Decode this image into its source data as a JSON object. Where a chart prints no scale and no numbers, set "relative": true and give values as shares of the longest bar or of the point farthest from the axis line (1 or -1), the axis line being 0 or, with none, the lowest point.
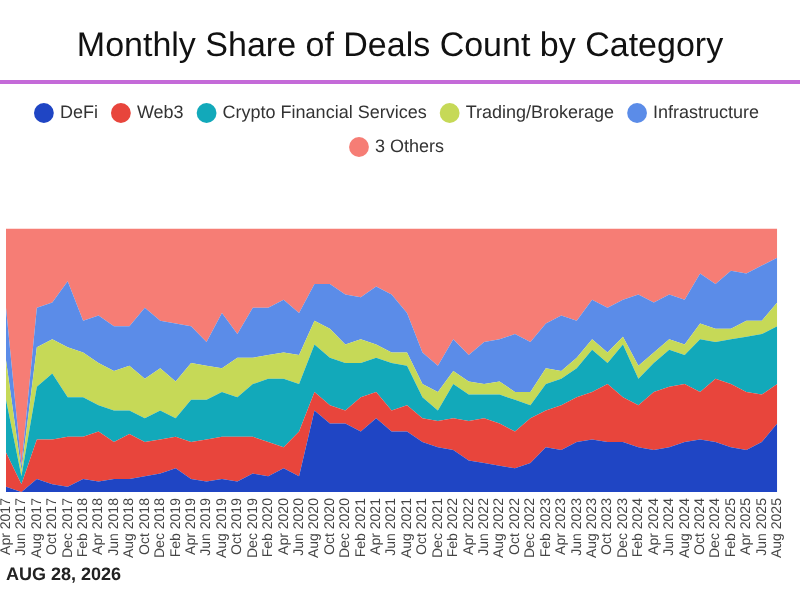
{
  "chart_data": {
    "type": "area",
    "title": "Monthly Share of Deals Count by Category",
    "stacked": true,
    "relative": true,
    "legend": "top",
    "categories": [
      "Apr 2017",
      "Jun 2017",
      "Aug 2017",
      "Oct 2017",
      "Dec 2017",
      "Feb 2018",
      "Apr 2018",
      "Jun 2018",
      "Aug 2018",
      "Oct 2018",
      "Dec 2018",
      "Feb 2019",
      "Apr 2019",
      "Jun 2019",
      "Aug 2019",
      "Oct 2019",
      "Dec 2019",
      "Feb 2020",
      "Apr 2020",
      "Jun 2020",
      "Aug 2020",
      "Oct 2020",
      "Dec 2020",
      "Feb 2021",
      "Apr 2021",
      "Jun 2021",
      "Aug 2021",
      "Oct 2021",
      "Dec 2021",
      "Feb 2022",
      "Apr 2022",
      "Jun 2022",
      "Aug 2022",
      "Oct 2022",
      "Dec 2022",
      "Feb 2023",
      "Apr 2023",
      "Jun 2023",
      "Aug 2023",
      "Oct 2023",
      "Dec 2023",
      "Feb 2024",
      "Apr 2024",
      "Jun 2024",
      "Aug 2024",
      "Oct 2024",
      "Dec 2024",
      "Feb 2025",
      "Apr 2025",
      "Jun 2025",
      "Aug 2025"
    ],
    "series": [
      {
        "name": "DeFi",
        "color": "#1f45c4",
        "values": [
          0.02,
          0,
          0.05,
          0.03,
          0.02,
          0.05,
          0.04,
          0.05,
          0.05,
          0.06,
          0.07,
          0.09,
          0.05,
          0.04,
          0.05,
          0.04,
          0.07,
          0.06,
          0.09,
          0.06,
          0.31,
          0.26,
          0.26,
          0.23,
          0.28,
          0.23,
          0.23,
          0.19,
          0.17,
          0.16,
          0.12,
          0.11,
          0.1,
          0.09,
          0.11,
          0.17,
          0.16,
          0.19,
          0.2,
          0.19,
          0.19,
          0.17,
          0.16,
          0.17,
          0.19,
          0.2,
          0.19,
          0.17,
          0.16,
          0.19,
          0.26
        ]
      },
      {
        "name": "Web3",
        "color": "#e8453c",
        "values": [
          0.13,
          0.03,
          0.15,
          0.17,
          0.19,
          0.16,
          0.19,
          0.14,
          0.17,
          0.13,
          0.13,
          0.12,
          0.14,
          0.16,
          0.16,
          0.17,
          0.14,
          0.13,
          0.08,
          0.17,
          0.07,
          0.07,
          0.05,
          0.13,
          0.1,
          0.08,
          0.1,
          0.09,
          0.1,
          0.12,
          0.15,
          0.17,
          0.16,
          0.14,
          0.17,
          0.14,
          0.17,
          0.17,
          0.18,
          0.22,
          0.17,
          0.16,
          0.22,
          0.23,
          0.22,
          0.18,
          0.24,
          0.24,
          0.22,
          0.18,
          0.15
        ]
      },
      {
        "name": "Crypto Financial Services",
        "color": "#12a9ba",
        "values": [
          0.2,
          0.03,
          0.2,
          0.25,
          0.15,
          0.15,
          0.1,
          0.12,
          0.09,
          0.09,
          0.11,
          0.07,
          0.16,
          0.15,
          0.17,
          0.15,
          0.2,
          0.24,
          0.26,
          0.18,
          0.18,
          0.18,
          0.18,
          0.13,
          0.13,
          0.18,
          0.15,
          0.08,
          0.04,
          0.13,
          0.1,
          0.09,
          0.11,
          0.12,
          0.05,
          0.1,
          0.1,
          0.11,
          0.16,
          0.08,
          0.2,
          0.1,
          0.11,
          0.14,
          0.11,
          0.2,
          0.14,
          0.17,
          0.21,
          0.23,
          0.22
        ]
      },
      {
        "name": "Trading/Brokerage",
        "color": "#c6d957",
        "values": [
          0.15,
          0.02,
          0.15,
          0.13,
          0.19,
          0.17,
          0.16,
          0.15,
          0.17,
          0.15,
          0.16,
          0.14,
          0.14,
          0.13,
          0.09,
          0.15,
          0.1,
          0.09,
          0.1,
          0.11,
          0.09,
          0.11,
          0.07,
          0.09,
          0.05,
          0.04,
          0.05,
          0.05,
          0.07,
          0.05,
          0.05,
          0.04,
          0.05,
          0.03,
          0.05,
          0.06,
          0.03,
          0.04,
          0.04,
          0.04,
          0.03,
          0.05,
          0.04,
          0.04,
          0.04,
          0.06,
          0.05,
          0.04,
          0.06,
          0.05,
          0.09
        ]
      },
      {
        "name": "Infrastructure",
        "color": "#5b8ce8",
        "values": [
          0.2,
          0.02,
          0.15,
          0.14,
          0.25,
          0.12,
          0.18,
          0.17,
          0.15,
          0.27,
          0.18,
          0.22,
          0.14,
          0.09,
          0.21,
          0.09,
          0.19,
          0.18,
          0.2,
          0.16,
          0.14,
          0.17,
          0.19,
          0.16,
          0.22,
          0.22,
          0.15,
          0.12,
          0.1,
          0.12,
          0.1,
          0.16,
          0.16,
          0.22,
          0.19,
          0.17,
          0.21,
          0.14,
          0.15,
          0.17,
          0.14,
          0.27,
          0.19,
          0.17,
          0.17,
          0.19,
          0.17,
          0.22,
          0.18,
          0.21,
          0.17
        ]
      },
      {
        "name": "3 Others",
        "color": "#f67d75",
        "values": [
          0.3,
          0.9,
          0.3,
          0.28,
          0.2,
          0.35,
          0.33,
          0.37,
          0.37,
          0.3,
          0.35,
          0.36,
          0.37,
          0.43,
          0.32,
          0.4,
          0.3,
          0.3,
          0.27,
          0.32,
          0.21,
          0.21,
          0.25,
          0.26,
          0.22,
          0.25,
          0.32,
          0.47,
          0.52,
          0.42,
          0.48,
          0.43,
          0.42,
          0.4,
          0.43,
          0.36,
          0.33,
          0.35,
          0.27,
          0.3,
          0.27,
          0.25,
          0.28,
          0.25,
          0.27,
          0.17,
          0.21,
          0.16,
          0.17,
          0.14,
          0.11
        ]
      }
    ],
    "annotations": [
      "AUG 28, 2026"
    ]
  }
}
